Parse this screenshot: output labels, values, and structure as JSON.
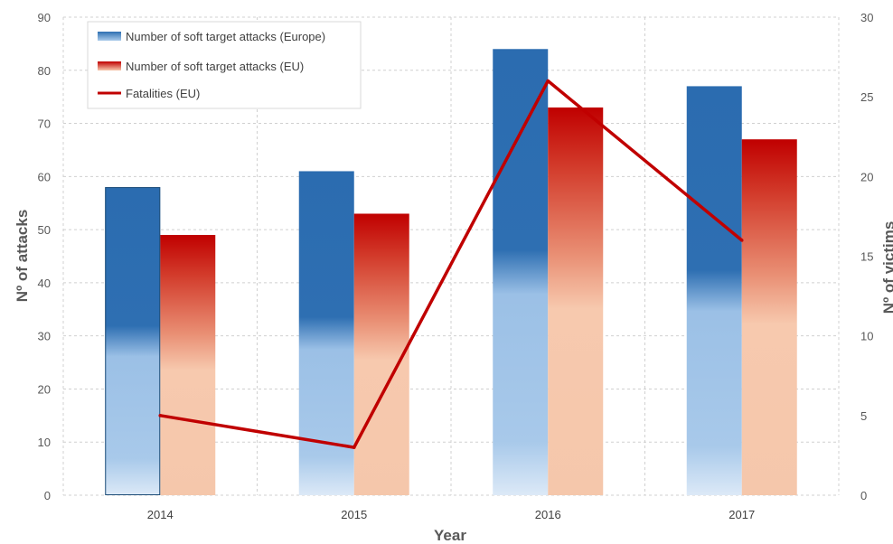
{
  "chart_data": {
    "type": "bar",
    "categories": [
      "2014",
      "2015",
      "2016",
      "2017"
    ],
    "series": [
      {
        "name": "Number of soft target attacks (Europe)",
        "type": "bar",
        "axis": "left",
        "values": [
          58,
          61,
          84,
          77
        ],
        "color": "#2e6fb2",
        "color_light": "#c9dcf2"
      },
      {
        "name": "Number of soft target attacks (EU)",
        "type": "bar",
        "axis": "left",
        "values": [
          49,
          53,
          73,
          67
        ],
        "color": "#c00000",
        "color_light": "#f6c9ad"
      },
      {
        "name": "Fatalities (EU)",
        "type": "line",
        "axis": "right",
        "values": [
          5,
          3,
          26,
          16
        ],
        "color": "#c00000"
      }
    ],
    "xlabel": "Year",
    "ylabel": "Nº of attacks",
    "ylabel_right": "Nº of victims",
    "ylim": [
      0,
      90
    ],
    "ylim_right": [
      0,
      30
    ],
    "yticks": [
      0,
      10,
      20,
      30,
      40,
      50,
      60,
      70,
      80,
      90
    ],
    "yticks_right": [
      0,
      5,
      10,
      15,
      20,
      25,
      30
    ],
    "grid": true,
    "legend_position": "top-left"
  }
}
